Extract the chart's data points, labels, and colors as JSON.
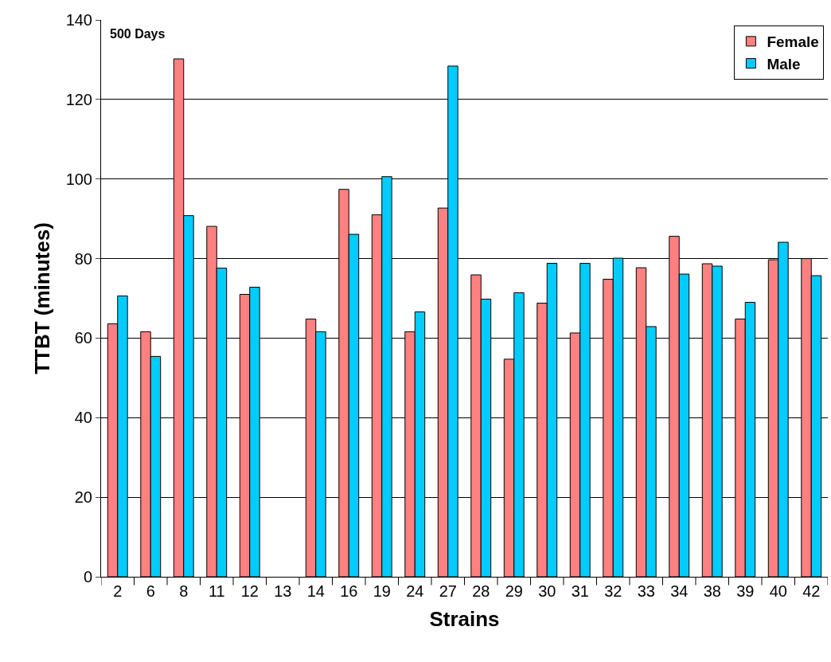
{
  "chart_data": {
    "type": "bar",
    "xlabel": "Strains",
    "ylabel": "TTBT (minutes)",
    "annotations": [
      "500 Days"
    ],
    "categories": [
      "2",
      "6",
      "8",
      "11",
      "12",
      "13",
      "14",
      "16",
      "19",
      "24",
      "27",
      "28",
      "29",
      "30",
      "31",
      "32",
      "33",
      "34",
      "38",
      "39",
      "40",
      "42"
    ],
    "series": [
      {
        "name": "Female",
        "color": "#ff8080",
        "values": [
          63.6,
          61.6,
          130.2,
          88.1,
          71.0,
          null,
          64.8,
          97.4,
          91.0,
          61.6,
          92.7,
          75.9,
          54.7,
          68.8,
          61.3,
          74.8,
          77.7,
          85.6,
          78.7,
          64.8,
          79.7,
          80.0
        ]
      },
      {
        "name": "Male",
        "color": "#00ccff",
        "values": [
          70.6,
          55.4,
          90.8,
          77.6,
          72.8,
          null,
          61.6,
          86.1,
          100.6,
          66.6,
          128.4,
          69.8,
          71.4,
          78.8,
          78.8,
          80.1,
          62.9,
          76.1,
          78.1,
          69.0,
          84.1,
          75.7
        ]
      }
    ],
    "ylim": [
      0,
      140
    ],
    "yticks": [
      0,
      20,
      40,
      60,
      80,
      100,
      120,
      140
    ],
    "grid": "y",
    "legend": "top right"
  }
}
